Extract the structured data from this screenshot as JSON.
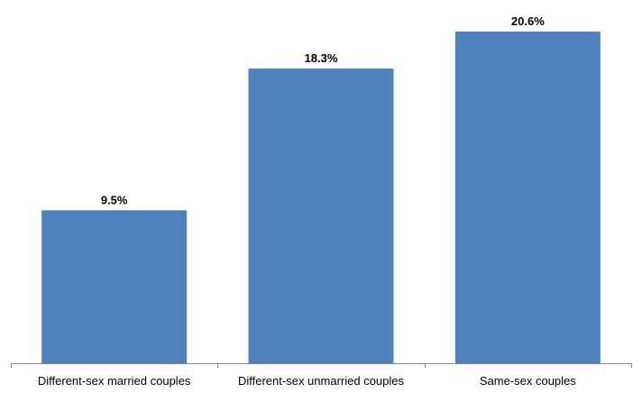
{
  "colors": {
    "bar": "#4f81bd",
    "axis": "#868686",
    "text": "#000000"
  },
  "chart_data": {
    "type": "bar",
    "categories": [
      "Different-sex married couples",
      "Different-sex unmarried couples",
      "Same-sex couples"
    ],
    "values": [
      9.5,
      18.3,
      20.6
    ],
    "data_labels": [
      "9.5%",
      "18.3%",
      "20.6%"
    ],
    "title": "",
    "xlabel": "",
    "ylabel": "",
    "ylim": [
      0,
      22
    ],
    "grid": false,
    "legend": "none"
  }
}
